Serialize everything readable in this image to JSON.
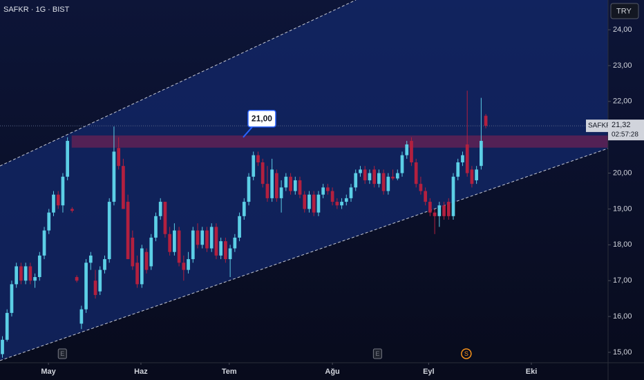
{
  "chart_data": {
    "type": "candlestick",
    "title": "SAFKR · 1G · BIST",
    "currency": "TRY",
    "symbol": "SAFKR",
    "up_color": "#5ccfe6",
    "down_color": "#b2203f",
    "open": [
      14.95,
      15.35,
      16.1,
      16.9,
      17.4,
      17.0,
      17.4,
      17.0,
      17.1,
      17.7,
      18.4,
      18.9,
      19.4,
      19.1,
      19.9,
      19.0,
      17.1,
      15.8,
      16.2,
      17.5,
      17.0,
      16.7,
      17.3,
      17.6,
      19.2,
      20.7,
      20.2,
      19.2,
      18.2,
      17.5,
      16.9,
      17.8,
      17.4,
      18.2,
      18.8,
      19.2,
      18.3,
      17.8,
      18.4,
      17.5,
      17.3,
      17.6,
      18.4,
      18.0,
      18.4,
      17.9,
      18.5,
      17.7,
      18.1,
      17.6,
      17.9,
      18.2,
      18.8,
      19.2,
      19.9,
      20.5,
      20.3,
      19.7,
      19.3,
      20.0,
      19.3,
      19.6,
      19.9,
      19.5,
      19.8,
      19.4,
      19.0,
      19.4,
      18.9,
      19.4,
      19.6,
      19.5,
      19.2,
      19.1,
      19.2,
      19.3,
      19.6,
      20.0,
      20.1,
      19.8,
      20.1,
      19.7,
      20.0,
      19.5,
      19.9,
      19.85,
      20.0,
      20.5,
      20.9,
      20.3,
      19.7,
      19.5,
      19.2,
      18.9,
      18.8,
      19.1,
      19.2,
      18.8,
      19.9,
      20.3,
      20.8,
      20.1,
      19.8,
      20.2,
      21.6
    ],
    "high": [
      15.45,
      16.2,
      17.0,
      17.5,
      17.5,
      17.5,
      17.5,
      17.2,
      17.8,
      18.5,
      19.0,
      19.5,
      19.5,
      20.0,
      21.0,
      19.05,
      17.15,
      16.3,
      17.6,
      17.8,
      17.3,
      17.4,
      17.7,
      19.3,
      21.3,
      21.0,
      20.4,
      19.4,
      18.4,
      17.7,
      18.0,
      17.9,
      18.3,
      18.9,
      19.3,
      19.2,
      18.5,
      18.6,
      18.5,
      17.7,
      17.8,
      18.5,
      18.6,
      18.5,
      18.5,
      18.6,
      18.6,
      18.2,
      18.2,
      18.0,
      18.3,
      18.9,
      19.3,
      20.0,
      20.6,
      20.6,
      20.4,
      20.2,
      20.4,
      20.1,
      19.8,
      20.0,
      20.0,
      19.9,
      19.9,
      19.5,
      19.5,
      19.5,
      19.5,
      19.7,
      19.7,
      19.6,
      19.3,
      19.3,
      19.4,
      19.7,
      20.1,
      20.2,
      20.2,
      20.1,
      20.2,
      20.1,
      20.1,
      20.0,
      20.1,
      20.1,
      20.6,
      20.9,
      21.0,
      20.4,
      19.9,
      19.6,
      19.3,
      19.0,
      19.2,
      19.2,
      19.3,
      20.0,
      20.4,
      20.6,
      22.3,
      20.2,
      20.2,
      22.1,
      21.65
    ],
    "low": [
      14.85,
      15.3,
      16.0,
      16.8,
      16.9,
      16.9,
      16.9,
      16.8,
      17.0,
      17.6,
      18.3,
      18.8,
      19.0,
      18.9,
      19.8,
      18.9,
      16.95,
      15.65,
      16.1,
      17.3,
      16.5,
      16.6,
      17.2,
      17.5,
      19.1,
      20.1,
      19.0,
      17.6,
      17.3,
      16.8,
      16.8,
      17.2,
      17.3,
      18.1,
      18.7,
      18.2,
      17.7,
      17.7,
      17.4,
      17.0,
      17.2,
      17.5,
      17.9,
      17.9,
      17.8,
      17.8,
      17.6,
      17.6,
      17.5,
      17.1,
      17.8,
      18.1,
      18.7,
      19.1,
      19.8,
      20.2,
      19.6,
      19.2,
      19.2,
      19.2,
      18.9,
      19.5,
      19.4,
      19.4,
      19.3,
      18.9,
      18.9,
      18.8,
      18.8,
      19.3,
      19.4,
      19.1,
      19.0,
      19.0,
      19.1,
      19.2,
      19.5,
      19.9,
      19.7,
      19.7,
      19.6,
      19.6,
      19.4,
      19.4,
      19.8,
      19.8,
      19.9,
      20.4,
      20.2,
      19.6,
      19.4,
      19.1,
      18.8,
      18.3,
      18.5,
      18.7,
      18.7,
      18.7,
      19.8,
      20.2,
      19.9,
      19.6,
      19.7,
      20.1,
      21.25
    ],
    "close": [
      15.35,
      16.1,
      16.9,
      17.4,
      17.0,
      17.4,
      17.0,
      17.1,
      17.7,
      18.4,
      18.9,
      19.4,
      19.1,
      19.9,
      20.9,
      18.95,
      17.0,
      16.2,
      17.5,
      17.7,
      16.6,
      17.3,
      17.6,
      19.2,
      20.6,
      20.2,
      19.0,
      17.6,
      17.4,
      16.9,
      17.9,
      17.3,
      18.2,
      18.8,
      19.2,
      18.3,
      17.8,
      18.4,
      17.5,
      17.3,
      17.6,
      18.4,
      18.0,
      18.4,
      17.9,
      18.5,
      17.7,
      18.1,
      17.6,
      17.9,
      18.2,
      18.8,
      19.2,
      19.9,
      20.5,
      20.3,
      19.7,
      19.3,
      20.1,
      19.3,
      19.6,
      19.9,
      19.5,
      19.8,
      19.4,
      19.0,
      19.4,
      18.9,
      19.4,
      19.6,
      19.5,
      19.2,
      19.1,
      19.2,
      19.3,
      19.6,
      20.0,
      20.1,
      19.8,
      20.0,
      19.7,
      20.0,
      19.5,
      19.9,
      19.85,
      20.0,
      20.5,
      20.8,
      20.3,
      19.7,
      19.5,
      19.2,
      18.9,
      18.8,
      19.1,
      18.8,
      18.8,
      19.9,
      20.3,
      20.5,
      20.0,
      19.7,
      20.1,
      20.9,
      21.32
    ],
    "xlim": [
      -0.52,
      130.3
    ],
    "xticks": [
      {
        "value": 9.9,
        "label": "May"
      },
      {
        "value": 29.8,
        "label": "Haz"
      },
      {
        "value": 48.8,
        "label": "Tem"
      },
      {
        "value": 71.0,
        "label": "Ağu"
      },
      {
        "value": 91.7,
        "label": "Eyl"
      },
      {
        "value": 113.8,
        "label": "Eki"
      }
    ],
    "ylim": [
      14.71,
      24.83
    ],
    "yticks": [
      {
        "value": 15,
        "label": "15,00"
      },
      {
        "value": 16,
        "label": "16,00"
      },
      {
        "value": 17,
        "label": "17,00"
      },
      {
        "value": 18,
        "label": "18,00"
      },
      {
        "value": 19,
        "label": "19,00"
      },
      {
        "value": 20,
        "label": "20,00"
      },
      {
        "value": 21,
        "label": "21,00"
      },
      {
        "value": 22,
        "label": "22,00"
      },
      {
        "value": 23,
        "label": "23,00"
      },
      {
        "value": 24,
        "label": "24,00"
      }
    ],
    "zone": {
      "from": 14.9,
      "low": 20.71,
      "high": 21.05
    },
    "channel": {
      "upper": [
        [
          -0.52,
          20.2
        ],
        [
          76.05,
          24.83
        ]
      ],
      "lower": [
        [
          -0.52,
          14.77
        ],
        [
          130.3,
          20.69
        ]
      ]
    },
    "annotation": {
      "x": 51.8,
      "value": 21.0,
      "label": "21,00"
    },
    "last_price": {
      "value": 21.32,
      "label": "21,32"
    },
    "countdown": "02:57:28",
    "events": [
      {
        "x": 12.9,
        "label": "E",
        "color": "#787b86"
      },
      {
        "x": 80.7,
        "label": "E",
        "color": "#787b86"
      },
      {
        "x": 99.8,
        "label": "S",
        "color": "#f7931a"
      }
    ]
  }
}
